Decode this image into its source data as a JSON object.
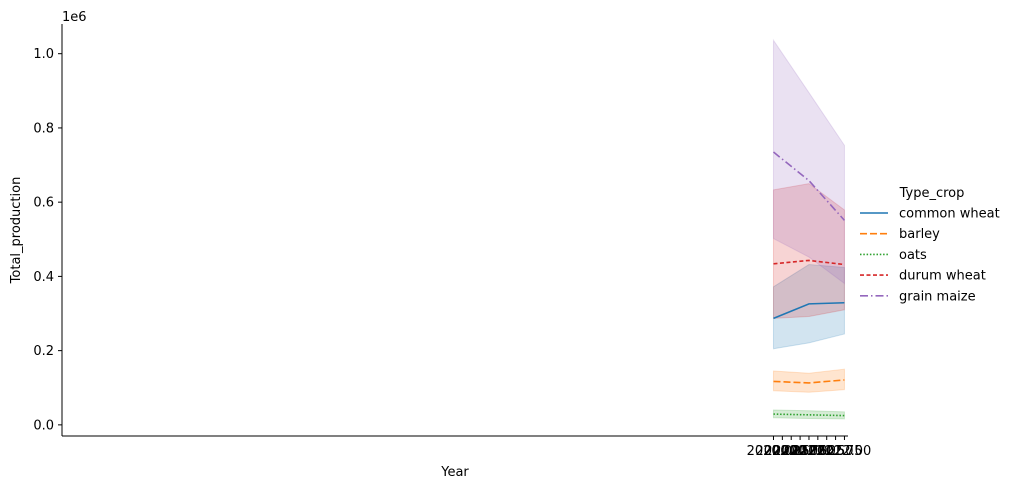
{
  "chart_data": {
    "type": "line",
    "xlabel": "Year",
    "ylabel": "Total_production",
    "y_offset_label": "1e6",
    "xlim": [
      1999.95,
      2022.1
    ],
    "ylim": [
      -0.03,
      1.08
    ],
    "y_scale": 1000000,
    "x_ticks": [
      2020.0,
      2020.25,
      2020.5,
      2020.75,
      2021.0,
      2021.25,
      2021.5,
      2021.75,
      2022.0
    ],
    "x_tick_labels": [
      "2020.00",
      "2020.25",
      "2020.50",
      "2020.75",
      "2021.00",
      "2021.25",
      "2021.50",
      "2021.75",
      "2022.00"
    ],
    "y_ticks": [
      0.0,
      0.2,
      0.4,
      0.6,
      0.8,
      1.0
    ],
    "y_tick_labels": [
      "0.0",
      "0.2",
      "0.4",
      "0.6",
      "0.8",
      "1.0"
    ],
    "legend_title": "Type_crop",
    "legend_position": "right",
    "x": [
      2020,
      2021,
      2022
    ],
    "series": [
      {
        "name": "common wheat",
        "color": "#1f77b4",
        "dash": "solid",
        "values": [
          0.287,
          0.326,
          0.329
        ],
        "lower": [
          0.205,
          0.221,
          0.245
        ],
        "upper": [
          0.372,
          0.432,
          0.424
        ]
      },
      {
        "name": "barley",
        "color": "#ff7f0e",
        "dash": "dashed",
        "values": [
          0.117,
          0.113,
          0.121
        ],
        "lower": [
          0.092,
          0.088,
          0.095
        ],
        "upper": [
          0.145,
          0.139,
          0.15
        ]
      },
      {
        "name": "oats",
        "color": "#2ca02c",
        "dash": "dotted",
        "values": [
          0.029,
          0.027,
          0.025
        ],
        "lower": [
          0.019,
          0.017,
          0.016
        ],
        "upper": [
          0.04,
          0.038,
          0.035
        ]
      },
      {
        "name": "durum wheat",
        "color": "#d62728",
        "dash": "dash-short",
        "values": [
          0.434,
          0.443,
          0.432
        ],
        "lower": [
          0.287,
          0.292,
          0.31
        ],
        "upper": [
          0.633,
          0.65,
          0.579
        ]
      },
      {
        "name": "grain maize",
        "color": "#9467bd",
        "dash": "dashdot",
        "values": [
          0.735,
          0.658,
          0.551
        ],
        "lower": [
          0.502,
          0.452,
          0.381
        ],
        "upper": [
          1.036,
          0.895,
          0.753
        ]
      }
    ]
  }
}
